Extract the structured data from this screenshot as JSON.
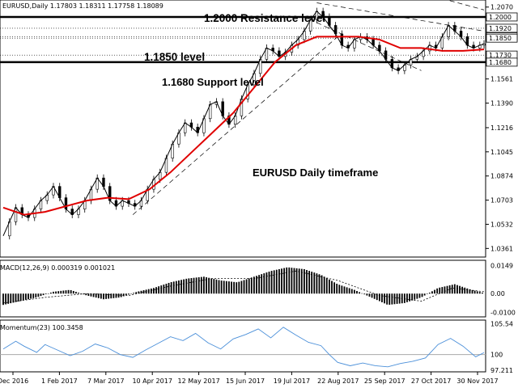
{
  "window": {
    "header": "EURUSD,Daily 1.17803 1.18311 1.17758 1.18089"
  },
  "annotations": {
    "resistance": "1.2000 Resistance level",
    "mid_level": "1.1850 level",
    "support": "1.1680 Support level",
    "timeframe": "EURUSD Daily timeframe"
  },
  "chart_data": [
    {
      "type": "candlestick",
      "symbol": "EURUSD",
      "timeframe": "Daily",
      "ohlc_last": {
        "open": 1.17803,
        "high": 1.18311,
        "low": 1.17758,
        "close": 1.18089
      },
      "y_tick_labels": [
        "1.2070",
        "1.1561",
        "1.1390",
        "1.1216",
        "1.1045",
        "1.0874",
        "1.0703",
        "1.0532",
        "1.0361"
      ],
      "level_labels": [
        "1.2000",
        "1.1920",
        "1.1860",
        "1.1850",
        "1.1730",
        "1.1680"
      ],
      "x_tick_labels": [
        "Dec 2016",
        "1 Feb 2017",
        "7 Mar 2017",
        "10 Apr 2017",
        "12 May 2017",
        "15 Jun 2017",
        "19 Jul 2017",
        "22 Aug 2017",
        "25 Sep 2017",
        "27 Oct 2017",
        "30 Nov 2017"
      ],
      "ylim": [
        1.03,
        1.212
      ],
      "levels": [
        {
          "value": 1.2,
          "style": "thick"
        },
        {
          "value": 1.192,
          "style": "dotted"
        },
        {
          "value": 1.186,
          "style": "dotted"
        },
        {
          "value": 1.185,
          "style": "dotted"
        },
        {
          "value": 1.173,
          "style": "dotted"
        },
        {
          "value": 1.168,
          "style": "thick"
        }
      ],
      "close_path": [
        [
          0,
          1.045
        ],
        [
          3,
          1.055
        ],
        [
          6,
          1.065
        ],
        [
          9,
          1.06
        ],
        [
          12,
          1.058
        ],
        [
          15,
          1.064
        ],
        [
          18,
          1.07
        ],
        [
          21,
          1.074
        ],
        [
          24,
          1.08
        ],
        [
          27,
          1.072
        ],
        [
          30,
          1.064
        ],
        [
          33,
          1.06
        ],
        [
          36,
          1.064
        ],
        [
          39,
          1.07
        ],
        [
          42,
          1.078
        ],
        [
          45,
          1.086
        ],
        [
          48,
          1.08
        ],
        [
          51,
          1.07
        ],
        [
          54,
          1.066
        ],
        [
          57,
          1.07
        ],
        [
          60,
          1.068
        ],
        [
          63,
          1.066
        ],
        [
          66,
          1.07
        ],
        [
          69,
          1.078
        ],
        [
          72,
          1.085
        ],
        [
          75,
          1.09
        ],
        [
          78,
          1.1
        ],
        [
          81,
          1.11
        ],
        [
          84,
          1.118
        ],
        [
          87,
          1.125
        ],
        [
          90,
          1.122
        ],
        [
          93,
          1.118
        ],
        [
          96,
          1.128
        ],
        [
          99,
          1.138
        ],
        [
          102,
          1.14
        ],
        [
          105,
          1.13
        ],
        [
          108,
          1.124
        ],
        [
          111,
          1.13
        ],
        [
          114,
          1.142
        ],
        [
          117,
          1.152
        ],
        [
          120,
          1.16
        ],
        [
          123,
          1.17
        ],
        [
          126,
          1.178
        ],
        [
          129,
          1.176
        ],
        [
          132,
          1.172
        ],
        [
          135,
          1.175
        ],
        [
          138,
          1.18
        ],
        [
          141,
          1.184
        ],
        [
          144,
          1.19
        ],
        [
          147,
          1.198
        ],
        [
          150,
          1.204
        ],
        [
          153,
          1.2
        ],
        [
          156,
          1.194
        ],
        [
          159,
          1.188
        ],
        [
          162,
          1.18
        ],
        [
          165,
          1.178
        ],
        [
          168,
          1.184
        ],
        [
          171,
          1.186
        ],
        [
          174,
          1.184
        ],
        [
          177,
          1.18
        ],
        [
          180,
          1.176
        ],
        [
          183,
          1.17
        ],
        [
          186,
          1.164
        ],
        [
          189,
          1.162
        ],
        [
          192,
          1.166
        ],
        [
          195,
          1.17
        ],
        [
          198,
          1.172
        ],
        [
          201,
          1.176
        ],
        [
          204,
          1.18
        ],
        [
          207,
          1.178
        ],
        [
          210,
          1.186
        ],
        [
          213,
          1.194
        ],
        [
          216,
          1.19
        ],
        [
          219,
          1.186
        ],
        [
          222,
          1.18
        ],
        [
          225,
          1.178
        ],
        [
          228,
          1.18
        ],
        [
          230,
          1.181
        ]
      ],
      "moving_average": [
        [
          0,
          1.065
        ],
        [
          10,
          1.06
        ],
        [
          20,
          1.062
        ],
        [
          30,
          1.066
        ],
        [
          40,
          1.07
        ],
        [
          50,
          1.072
        ],
        [
          60,
          1.071
        ],
        [
          70,
          1.078
        ],
        [
          80,
          1.09
        ],
        [
          90,
          1.104
        ],
        [
          100,
          1.118
        ],
        [
          110,
          1.132
        ],
        [
          120,
          1.15
        ],
        [
          130,
          1.168
        ],
        [
          140,
          1.18
        ],
        [
          150,
          1.186
        ],
        [
          160,
          1.186
        ],
        [
          170,
          1.186
        ],
        [
          180,
          1.184
        ],
        [
          190,
          1.178
        ],
        [
          200,
          1.178
        ],
        [
          210,
          1.176
        ],
        [
          220,
          1.176
        ],
        [
          230,
          1.177
        ]
      ],
      "trendlines": [
        {
          "name": "channel-lower",
          "from": [
            62,
            1.06
          ],
          "to": [
            160,
            1.186
          ],
          "style": "dashed"
        },
        {
          "name": "channel-upper",
          "from": [
            150,
            1.21
          ],
          "to": [
            230,
            1.19
          ],
          "style": "dashed"
        },
        {
          "name": "channel-parallel",
          "from": [
            150,
            1.196
          ],
          "to": [
            200,
            1.162
          ],
          "style": "dashed"
        },
        {
          "name": "channel-top",
          "from": [
            180,
            1.225
          ],
          "to": [
            230,
            1.205
          ],
          "style": "dashed"
        }
      ]
    },
    {
      "type": "histogram",
      "title": "MACD(12,26,9) 0.000319 0.001021",
      "y_tick_labels": [
        "0.0149",
        "0.00",
        "-0.0100"
      ],
      "ylim": [
        -0.0115,
        0.016
      ],
      "bars": [
        [
          0,
          -0.006
        ],
        [
          8,
          -0.004
        ],
        [
          16,
          -0.002
        ],
        [
          24,
          0.001
        ],
        [
          32,
          0.002
        ],
        [
          40,
          -0.001
        ],
        [
          48,
          -0.003
        ],
        [
          56,
          -0.002
        ],
        [
          64,
          0.001
        ],
        [
          72,
          0.003
        ],
        [
          80,
          0.006
        ],
        [
          88,
          0.008
        ],
        [
          96,
          0.009
        ],
        [
          104,
          0.007
        ],
        [
          112,
          0.006
        ],
        [
          120,
          0.009
        ],
        [
          128,
          0.012
        ],
        [
          136,
          0.014
        ],
        [
          144,
          0.013
        ],
        [
          152,
          0.01
        ],
        [
          160,
          0.005
        ],
        [
          168,
          0.002
        ],
        [
          176,
          -0.002
        ],
        [
          184,
          -0.006
        ],
        [
          192,
          -0.005
        ],
        [
          200,
          -0.002
        ],
        [
          208,
          0.003
        ],
        [
          216,
          0.005
        ],
        [
          224,
          0.002
        ],
        [
          230,
          0.000319
        ]
      ],
      "signal": [
        [
          0,
          -0.005
        ],
        [
          20,
          -0.002
        ],
        [
          40,
          0.0
        ],
        [
          60,
          -0.001
        ],
        [
          80,
          0.004
        ],
        [
          100,
          0.008
        ],
        [
          120,
          0.008
        ],
        [
          140,
          0.012
        ],
        [
          160,
          0.007
        ],
        [
          180,
          -0.001
        ],
        [
          200,
          -0.004
        ],
        [
          215,
          0.003
        ],
        [
          230,
          0.001021
        ]
      ]
    },
    {
      "type": "line",
      "title": "Momentum(23) 100.3458",
      "y_tick_labels": [
        "105.54",
        "100",
        "97.211"
      ],
      "ylim": [
        97.2,
        105.6
      ],
      "reference_line": 100,
      "series": [
        [
          0,
          101.0
        ],
        [
          6,
          102.4
        ],
        [
          10,
          101.5
        ],
        [
          16,
          100.4
        ],
        [
          20,
          101.8
        ],
        [
          26,
          100.8
        ],
        [
          32,
          99.8
        ],
        [
          38,
          100.6
        ],
        [
          44,
          101.9
        ],
        [
          50,
          101.2
        ],
        [
          56,
          100.0
        ],
        [
          62,
          99.5
        ],
        [
          68,
          100.8
        ],
        [
          74,
          102.0
        ],
        [
          80,
          103.2
        ],
        [
          86,
          102.5
        ],
        [
          92,
          103.8
        ],
        [
          98,
          102.1
        ],
        [
          104,
          101.0
        ],
        [
          110,
          102.8
        ],
        [
          116,
          103.6
        ],
        [
          122,
          104.6
        ],
        [
          128,
          103.0
        ],
        [
          134,
          104.9
        ],
        [
          140,
          103.5
        ],
        [
          146,
          102.2
        ],
        [
          152,
          101.6
        ],
        [
          156,
          100.0
        ],
        [
          160,
          98.6
        ],
        [
          166,
          98.0
        ],
        [
          172,
          98.5
        ],
        [
          178,
          98.0
        ],
        [
          184,
          97.8
        ],
        [
          190,
          98.4
        ],
        [
          196,
          98.8
        ],
        [
          202,
          99.4
        ],
        [
          208,
          101.8
        ],
        [
          214,
          102.9
        ],
        [
          220,
          101.5
        ],
        [
          226,
          99.6
        ],
        [
          230,
          100.3458
        ]
      ]
    }
  ]
}
